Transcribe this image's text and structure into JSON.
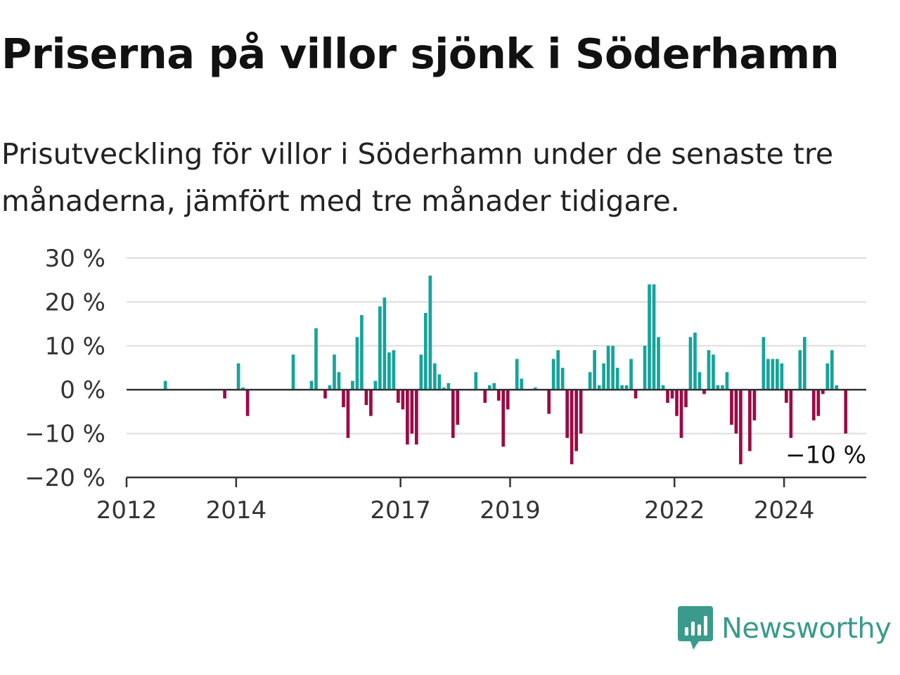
{
  "header": {
    "title": "Priserna på villor sjönk i Söderhamn",
    "subtitle": "Prisutveckling för villor i Söderhamn under de senaste tre månaderna, jämfört med tre månader tidigare."
  },
  "brand": {
    "name": "Newsworthy",
    "icon": "newsworthy-logo-icon",
    "color": "#3a9b8c"
  },
  "colors": {
    "positive": "#16a39a",
    "negative": "#9b0a45",
    "grid": "#dddddd",
    "axis": "#333333"
  },
  "chart_data": {
    "type": "bar",
    "title": "Priserna på villor sjönk i Söderhamn",
    "xlabel": "",
    "ylabel": "",
    "ylim": [
      -20,
      30
    ],
    "y_ticks": [
      30,
      20,
      10,
      0,
      -10,
      -20
    ],
    "y_tick_labels": [
      "30 %",
      "20 %",
      "10 %",
      "0 %",
      "−10 %",
      "−20 %"
    ],
    "x_ticks": [
      {
        "label": "2012",
        "year": 2012
      },
      {
        "label": "2014",
        "year": 2014
      },
      {
        "label": "2017",
        "year": 2017
      },
      {
        "label": "2019",
        "year": 2019
      },
      {
        "label": "2022",
        "year": 2022
      },
      {
        "label": "2024",
        "year": 2024
      }
    ],
    "x_range": [
      "2012-01",
      "2025-07"
    ],
    "grid": true,
    "end_label": "−10 %",
    "last_value": -10,
    "points": [
      {
        "x": "2012-09",
        "value": 2
      },
      {
        "x": "2013-10",
        "value": -2
      },
      {
        "x": "2014-01",
        "value": 6
      },
      {
        "x": "2014-02",
        "value": 0.5
      },
      {
        "x": "2014-03",
        "value": -6
      },
      {
        "x": "2015-01",
        "value": 8
      },
      {
        "x": "2015-05",
        "value": 2
      },
      {
        "x": "2015-06",
        "value": 14
      },
      {
        "x": "2015-08",
        "value": -2
      },
      {
        "x": "2015-09",
        "value": 1
      },
      {
        "x": "2015-10",
        "value": 8
      },
      {
        "x": "2015-11",
        "value": 4
      },
      {
        "x": "2015-12",
        "value": -4
      },
      {
        "x": "2016-01",
        "value": -11
      },
      {
        "x": "2016-02",
        "value": 2
      },
      {
        "x": "2016-03",
        "value": 12
      },
      {
        "x": "2016-04",
        "value": 17
      },
      {
        "x": "2016-05",
        "value": -3.5
      },
      {
        "x": "2016-06",
        "value": -6
      },
      {
        "x": "2016-07",
        "value": 2
      },
      {
        "x": "2016-08",
        "value": 19
      },
      {
        "x": "2016-09",
        "value": 21
      },
      {
        "x": "2016-10",
        "value": 8.5
      },
      {
        "x": "2016-11",
        "value": 9
      },
      {
        "x": "2016-12",
        "value": -3
      },
      {
        "x": "2017-01",
        "value": -4.5
      },
      {
        "x": "2017-02",
        "value": -12.5
      },
      {
        "x": "2017-03",
        "value": -10
      },
      {
        "x": "2017-04",
        "value": -12.5
      },
      {
        "x": "2017-05",
        "value": 8
      },
      {
        "x": "2017-06",
        "value": 17.5
      },
      {
        "x": "2017-07",
        "value": 26
      },
      {
        "x": "2017-08",
        "value": 6
      },
      {
        "x": "2017-09",
        "value": 3.5
      },
      {
        "x": "2017-10",
        "value": 0.5
      },
      {
        "x": "2017-11",
        "value": 1.5
      },
      {
        "x": "2017-12",
        "value": -11
      },
      {
        "x": "2018-01",
        "value": -8
      },
      {
        "x": "2018-05",
        "value": 4
      },
      {
        "x": "2018-07",
        "value": -3
      },
      {
        "x": "2018-08",
        "value": 1
      },
      {
        "x": "2018-09",
        "value": 1.5
      },
      {
        "x": "2018-10",
        "value": -2.5
      },
      {
        "x": "2018-11",
        "value": -13
      },
      {
        "x": "2018-12",
        "value": -4.5
      },
      {
        "x": "2019-02",
        "value": 7
      },
      {
        "x": "2019-03",
        "value": 2.5
      },
      {
        "x": "2019-06",
        "value": 0.5
      },
      {
        "x": "2019-09",
        "value": -5.5
      },
      {
        "x": "2019-10",
        "value": 7
      },
      {
        "x": "2019-11",
        "value": 9
      },
      {
        "x": "2019-12",
        "value": 5
      },
      {
        "x": "2020-01",
        "value": -11
      },
      {
        "x": "2020-02",
        "value": -17
      },
      {
        "x": "2020-03",
        "value": -14
      },
      {
        "x": "2020-04",
        "value": -10
      },
      {
        "x": "2020-06",
        "value": 4
      },
      {
        "x": "2020-07",
        "value": 9
      },
      {
        "x": "2020-08",
        "value": 1
      },
      {
        "x": "2020-09",
        "value": 6
      },
      {
        "x": "2020-10",
        "value": 10
      },
      {
        "x": "2020-11",
        "value": 10
      },
      {
        "x": "2020-12",
        "value": 5
      },
      {
        "x": "2021-01",
        "value": 1
      },
      {
        "x": "2021-02",
        "value": 1
      },
      {
        "x": "2021-03",
        "value": 7
      },
      {
        "x": "2021-04",
        "value": -2
      },
      {
        "x": "2021-06",
        "value": 10
      },
      {
        "x": "2021-07",
        "value": 24
      },
      {
        "x": "2021-08",
        "value": 24
      },
      {
        "x": "2021-09",
        "value": 12
      },
      {
        "x": "2021-10",
        "value": 1
      },
      {
        "x": "2021-11",
        "value": -3
      },
      {
        "x": "2021-12",
        "value": -2
      },
      {
        "x": "2022-01",
        "value": -6
      },
      {
        "x": "2022-02",
        "value": -11
      },
      {
        "x": "2022-03",
        "value": -4
      },
      {
        "x": "2022-04",
        "value": 12
      },
      {
        "x": "2022-05",
        "value": 13
      },
      {
        "x": "2022-06",
        "value": 4
      },
      {
        "x": "2022-07",
        "value": -1
      },
      {
        "x": "2022-08",
        "value": 9
      },
      {
        "x": "2022-09",
        "value": 8
      },
      {
        "x": "2022-10",
        "value": 1
      },
      {
        "x": "2022-11",
        "value": 1
      },
      {
        "x": "2022-12",
        "value": 4
      },
      {
        "x": "2023-01",
        "value": -8
      },
      {
        "x": "2023-02",
        "value": -10
      },
      {
        "x": "2023-03",
        "value": -17
      },
      {
        "x": "2023-05",
        "value": -14
      },
      {
        "x": "2023-06",
        "value": -7
      },
      {
        "x": "2023-08",
        "value": 12
      },
      {
        "x": "2023-09",
        "value": 7
      },
      {
        "x": "2023-10",
        "value": 7
      },
      {
        "x": "2023-11",
        "value": 7
      },
      {
        "x": "2023-12",
        "value": 6
      },
      {
        "x": "2024-01",
        "value": -3
      },
      {
        "x": "2024-02",
        "value": -11
      },
      {
        "x": "2024-04",
        "value": 9
      },
      {
        "x": "2024-05",
        "value": 12
      },
      {
        "x": "2024-07",
        "value": -7
      },
      {
        "x": "2024-08",
        "value": -6
      },
      {
        "x": "2024-09",
        "value": -1
      },
      {
        "x": "2024-10",
        "value": 6
      },
      {
        "x": "2024-11",
        "value": 9
      },
      {
        "x": "2024-12",
        "value": 1
      },
      {
        "x": "2025-02",
        "value": -10
      }
    ]
  }
}
